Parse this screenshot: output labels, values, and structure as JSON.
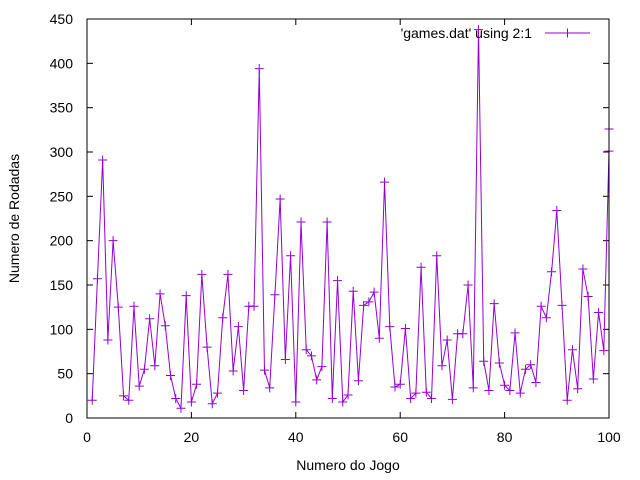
{
  "chart_data": {
    "type": "line",
    "xlabel": "Numero do Jogo",
    "ylabel": "Numero de Rodadas",
    "xlim": [
      0,
      100
    ],
    "ylim": [
      0,
      450
    ],
    "xticks": [
      0,
      20,
      40,
      60,
      80,
      100
    ],
    "yticks": [
      0,
      50,
      100,
      150,
      200,
      250,
      300,
      350,
      400,
      450
    ],
    "grid": false,
    "legend_position": "top-right",
    "marker": "plus",
    "series": [
      {
        "name": "'games.dat' using 2:1",
        "color": "#9400d3",
        "x": [
          1,
          2,
          3,
          4,
          5,
          6,
          7,
          8,
          9,
          10,
          11,
          12,
          13,
          14,
          15,
          16,
          17,
          18,
          19,
          20,
          21,
          22,
          23,
          24,
          25,
          26,
          27,
          28,
          29,
          30,
          31,
          32,
          33,
          34,
          35,
          36,
          37,
          38,
          39,
          40,
          41,
          42,
          43,
          44,
          45,
          46,
          47,
          48,
          49,
          50,
          51,
          52,
          53,
          54,
          55,
          56,
          57,
          58,
          59,
          60,
          61,
          62,
          63,
          64,
          65,
          66,
          67,
          68,
          69,
          70,
          71,
          72,
          73,
          74,
          75,
          76,
          77,
          78,
          79,
          80,
          81,
          82,
          83,
          84,
          85,
          86,
          87,
          88,
          89,
          90,
          91,
          92,
          93,
          94,
          95,
          96,
          97,
          98,
          99,
          100
        ],
        "y": [
          20,
          157,
          291,
          88,
          200,
          125,
          25,
          20,
          126,
          36,
          55,
          112,
          59,
          140,
          104,
          48,
          22,
          11,
          138,
          18,
          38,
          162,
          80,
          16,
          28,
          113,
          162,
          53,
          103,
          31,
          126,
          126,
          394,
          54,
          34,
          139,
          247,
          66,
          183,
          18,
          221,
          77,
          70,
          43,
          58,
          221,
          22,
          155,
          18,
          26,
          143,
          42,
          127,
          131,
          142,
          90,
          266,
          103,
          35,
          38,
          101,
          22,
          28,
          170,
          29,
          22,
          183,
          59,
          88,
          21,
          95,
          95,
          150,
          34,
          438,
          64,
          31,
          129,
          62,
          37,
          31,
          96,
          28,
          55,
          60,
          40,
          126,
          113,
          165,
          234,
          127,
          20,
          77,
          33,
          168,
          137,
          44,
          119,
          76,
          301
        ]
      }
    ],
    "tail_point": [
      101,
      326
    ]
  }
}
